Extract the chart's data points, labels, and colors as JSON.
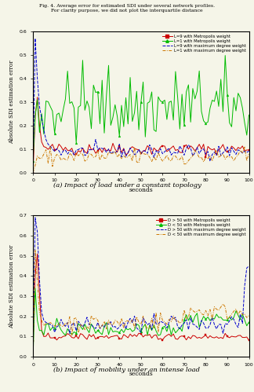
{
  "top_title": "Fig. 4. Average error for estimated SDI under several network profiles.\nFor clarity purpose, we did not plot the interquartile distance",
  "subplot_a": {
    "caption": "(a) Impact of load under a constant topology",
    "ylabel": "Absolute SDI estimation error",
    "xlabel": "seconds",
    "xlim": [
      0,
      100
    ],
    "ylim": [
      0,
      0.6
    ],
    "yticks": [
      0.0,
      0.1,
      0.2,
      0.3,
      0.4,
      0.5,
      0.6
    ],
    "xticks": [
      0,
      10,
      20,
      30,
      40,
      50,
      60,
      70,
      80,
      90,
      100
    ],
    "legend": [
      {
        "label": "L=9 with Metropolis weight",
        "color": "#cc0000",
        "style": "solid",
        "marker": "s"
      },
      {
        "label": "L=1 with Metropolis weight",
        "color": "#00bb00",
        "style": "solid",
        "marker": "^"
      },
      {
        "label": "L=9 with maximum degree weight",
        "color": "#0000cc",
        "style": "dashed",
        "marker": null
      },
      {
        "label": "L=1 with maximum degree weight",
        "color": "#cc7700",
        "style": "dashed",
        "marker": null
      }
    ]
  },
  "subplot_b": {
    "caption": "(b) Impact of mobility under an intense load",
    "ylabel": "Absolute SDI estimation error",
    "xlabel": "seconds",
    "xlim": [
      0,
      100
    ],
    "ylim": [
      0,
      0.7
    ],
    "yticks": [
      0.0,
      0.1,
      0.2,
      0.3,
      0.4,
      0.5,
      0.6,
      0.7
    ],
    "xticks": [
      0,
      10,
      20,
      30,
      40,
      50,
      60,
      70,
      80,
      90,
      100
    ],
    "legend": [
      {
        "label": "D > 50 with Metropolis weight",
        "color": "#cc0000",
        "style": "solid",
        "marker": "s"
      },
      {
        "label": "D < 50 with Metropolis weight",
        "color": "#00bb00",
        "style": "solid",
        "marker": "^"
      },
      {
        "label": "D > 50 with maximum degree weight",
        "color": "#0000cc",
        "style": "dashed",
        "marker": null
      },
      {
        "label": "D < 50 with maximum degree weight",
        "color": "#cc7700",
        "style": "dashed",
        "marker": null
      }
    ]
  },
  "colors": {
    "red": "#cc0000",
    "green": "#00bb00",
    "blue": "#0000cc",
    "orange": "#cc7700"
  },
  "bg_color": "#f5f5e8"
}
